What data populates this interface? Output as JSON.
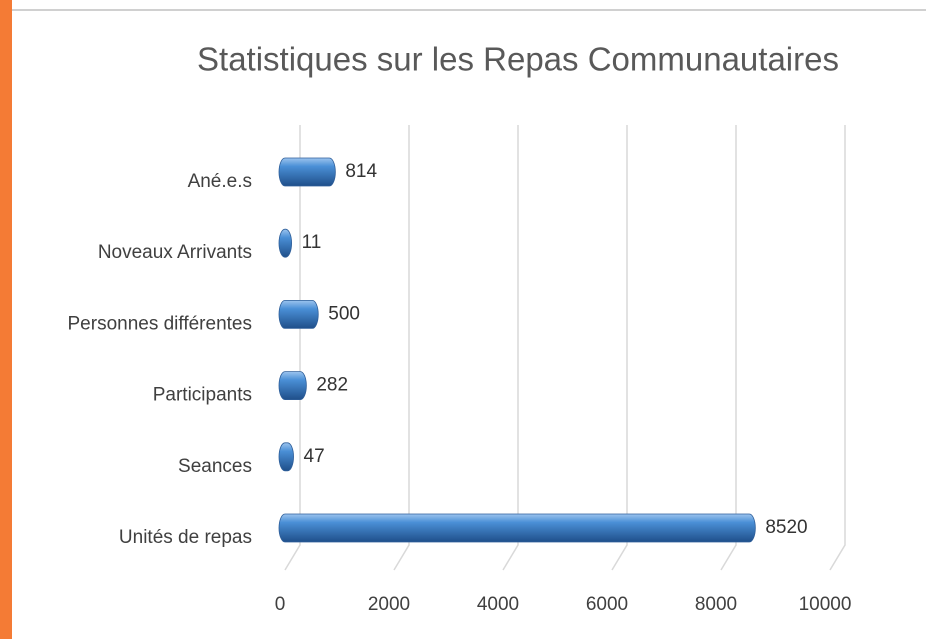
{
  "chart_data": {
    "type": "bar",
    "orientation": "horizontal",
    "title": "Statistiques sur les Repas Communautaires",
    "categories": [
      "Ané.e.s",
      "Noveaux Arrivants",
      "Personnes différentes",
      "Participants",
      "Seances",
      "Unités de repas"
    ],
    "values": [
      814,
      11,
      500,
      282,
      47,
      8520
    ],
    "color": "#4a8fd6",
    "xlim": [
      0,
      10000
    ],
    "xticks": [
      0,
      2000,
      4000,
      6000,
      8000,
      10000
    ],
    "grid": true
  }
}
